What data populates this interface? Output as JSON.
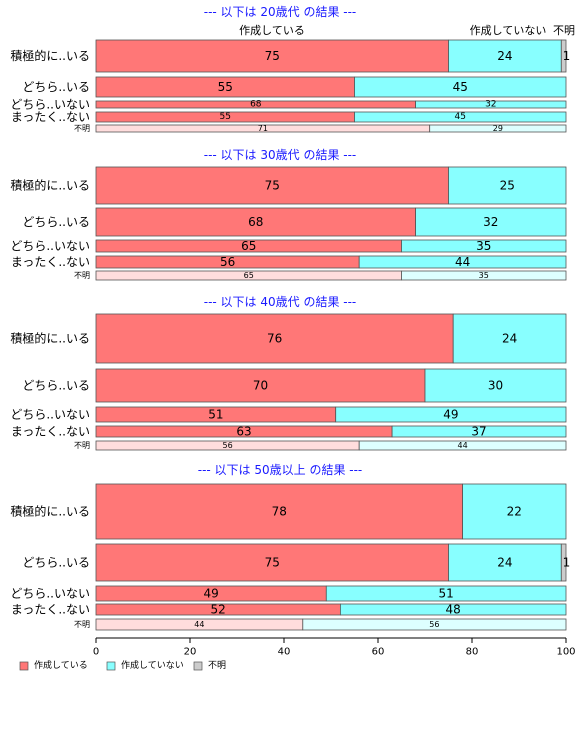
{
  "chart_data": {
    "type": "bar",
    "orientation": "horizontal",
    "stacked": true,
    "xlim": [
      0,
      100
    ],
    "xticks": [
      "0",
      "20",
      "40",
      "60",
      "80",
      "100"
    ],
    "column_labels": [
      "作成している",
      "作成していない",
      "不明"
    ],
    "legend": {
      "position": "bottom-left",
      "entries": [
        "作成している",
        "作成していない",
        "不明"
      ]
    },
    "colors": {
      "made": "#ff7777",
      "not_made": "#88ffff",
      "unknown": "#cccccc",
      "made_light": "#ffdddd",
      "not_made_light": "#ddffff"
    },
    "panels": [
      {
        "title": "--- 以下は 20歳代 の結果 ---",
        "rows": [
          {
            "label": "積極的に..いる",
            "values": [
              75,
              24,
              1
            ]
          },
          {
            "label": "どちら..いる",
            "values": [
              55,
              45,
              0
            ]
          },
          {
            "label": "どちら..いない",
            "values": [
              68,
              32,
              0
            ]
          },
          {
            "label": "まったく..ない",
            "values": [
              55,
              45,
              0
            ]
          },
          {
            "label": "不明",
            "values": [
              71,
              29,
              0
            ],
            "light": true
          }
        ]
      },
      {
        "title": "--- 以下は 30歳代 の結果 ---",
        "rows": [
          {
            "label": "積極的に..いる",
            "values": [
              75,
              25,
              0
            ]
          },
          {
            "label": "どちら..いる",
            "values": [
              68,
              32,
              0
            ]
          },
          {
            "label": "どちら..いない",
            "values": [
              65,
              35,
              0
            ]
          },
          {
            "label": "まったく..ない",
            "values": [
              56,
              44,
              0
            ]
          },
          {
            "label": "不明",
            "values": [
              65,
              35,
              0
            ],
            "light": true
          }
        ]
      },
      {
        "title": "--- 以下は 40歳代 の結果 ---",
        "rows": [
          {
            "label": "積極的に..いる",
            "values": [
              76,
              24,
              0
            ]
          },
          {
            "label": "どちら..いる",
            "values": [
              70,
              30,
              0
            ]
          },
          {
            "label": "どちら..いない",
            "values": [
              51,
              49,
              0
            ]
          },
          {
            "label": "まったく..ない",
            "values": [
              63,
              37,
              0
            ]
          },
          {
            "label": "不明",
            "values": [
              56,
              44,
              0
            ],
            "light": true
          }
        ]
      },
      {
        "title": "--- 以下は 50歳以上 の結果 ---",
        "rows": [
          {
            "label": "積極的に..いる",
            "values": [
              78,
              22,
              0
            ]
          },
          {
            "label": "どちら..いる",
            "values": [
              75,
              24,
              1
            ]
          },
          {
            "label": "どちら..いない",
            "values": [
              49,
              51,
              0
            ]
          },
          {
            "label": "まったく..ない",
            "values": [
              52,
              48,
              0
            ]
          },
          {
            "label": "不明",
            "values": [
              44,
              56,
              0
            ],
            "light": true
          }
        ]
      }
    ]
  }
}
